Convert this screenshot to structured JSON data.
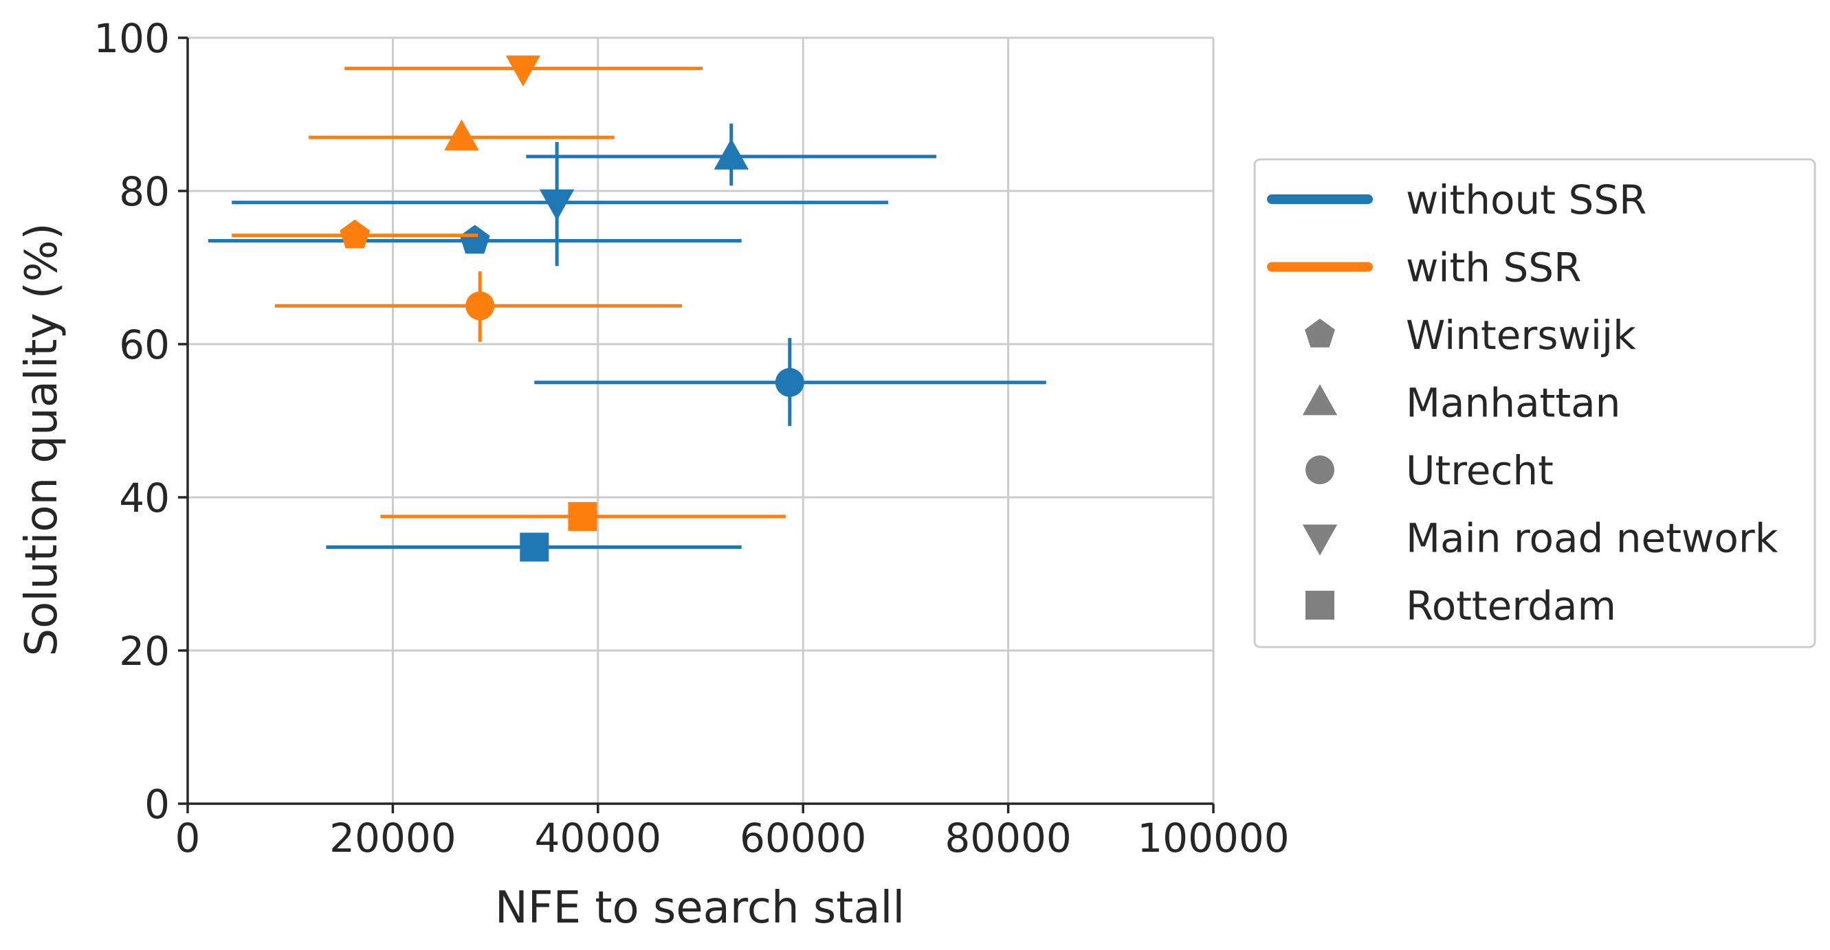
{
  "colors": {
    "without_ssr": "#1f77b4",
    "with_ssr": "#ff7f0e",
    "marker_legend": "#808080",
    "grid": "#cccccc",
    "axis": "#262626"
  },
  "chart_data": {
    "type": "scatter",
    "title": "",
    "xlabel": "NFE to search stall",
    "ylabel": "Solution quality (%)",
    "xlim": [
      0,
      100000
    ],
    "ylim": [
      0,
      100
    ],
    "x_ticks": [
      0,
      20000,
      40000,
      60000,
      80000,
      100000
    ],
    "x_tick_labels": [
      "0",
      "20000",
      "40000",
      "60000",
      "80000",
      "100000"
    ],
    "y_ticks": [
      0,
      20,
      40,
      60,
      80,
      100
    ],
    "y_tick_labels": [
      "0",
      "20",
      "40",
      "60",
      "80",
      "100"
    ],
    "grid": true,
    "legend_position": "outside-right",
    "legend": {
      "colors": [
        {
          "label": "without SSR",
          "color_key": "without_ssr"
        },
        {
          "label": "with SSR",
          "color_key": "with_ssr"
        }
      ],
      "markers": [
        {
          "label": "Winterswijk",
          "marker": "pentagon"
        },
        {
          "label": "Manhattan",
          "marker": "triangle-up"
        },
        {
          "label": "Utrecht",
          "marker": "circle"
        },
        {
          "label": "Main road network",
          "marker": "triangle-down"
        },
        {
          "label": "Rotterdam",
          "marker": "square"
        }
      ]
    },
    "series": [
      {
        "name": "without SSR",
        "color_key": "without_ssr",
        "points": [
          {
            "network": "Winterswijk",
            "marker": "pentagon",
            "x": 28000,
            "y": 73.5,
            "x_err": [
              2000,
              54000
            ],
            "y_err": null
          },
          {
            "network": "Manhattan",
            "marker": "triangle-up",
            "x": 53000,
            "y": 84.5,
            "x_err": [
              33000,
              73000
            ],
            "y_err": [
              80.7,
              88.8
            ]
          },
          {
            "network": "Utrecht",
            "marker": "circle",
            "x": 58700,
            "y": 55,
            "x_err": [
              33800,
              83700
            ],
            "y_err": [
              49.3,
              60.8
            ]
          },
          {
            "network": "Main road network",
            "marker": "triangle-down",
            "x": 36000,
            "y": 78.5,
            "x_err": [
              4300,
              68300
            ],
            "y_err": [
              70.2,
              86.4
            ]
          },
          {
            "network": "Rotterdam",
            "marker": "square",
            "x": 33800,
            "y": 33.5,
            "x_err": [
              13500,
              54000
            ],
            "y_err": null
          }
        ]
      },
      {
        "name": "with SSR",
        "color_key": "with_ssr",
        "points": [
          {
            "network": "Winterswijk",
            "marker": "pentagon",
            "x": 16300,
            "y": 74.2,
            "x_err": [
              4300,
              28300
            ],
            "y_err": null
          },
          {
            "network": "Manhattan",
            "marker": "triangle-up",
            "x": 26700,
            "y": 87,
            "x_err": [
              11800,
              41600
            ],
            "y_err": null
          },
          {
            "network": "Utrecht",
            "marker": "circle",
            "x": 28500,
            "y": 65,
            "x_err": [
              8500,
              48200
            ],
            "y_err": [
              60.3,
              69.5
            ]
          },
          {
            "network": "Main road network",
            "marker": "triangle-down",
            "x": 32700,
            "y": 96,
            "x_err": [
              15300,
              50200
            ],
            "y_err": null
          },
          {
            "network": "Rotterdam",
            "marker": "square",
            "x": 38500,
            "y": 37.5,
            "x_err": [
              18800,
              58300
            ],
            "y_err": null
          }
        ]
      }
    ]
  }
}
